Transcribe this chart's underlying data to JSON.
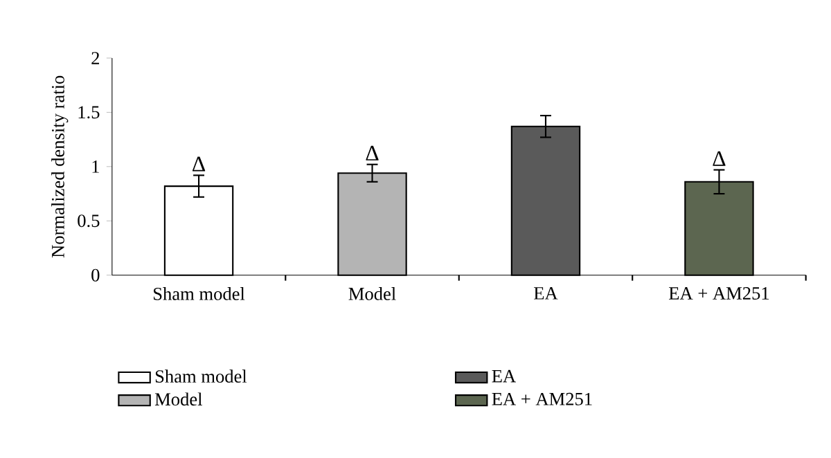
{
  "chart_data": {
    "type": "bar",
    "ylabel": "Normalized density ratio",
    "categories": [
      "Sham model",
      "Model",
      "EA",
      "EA + AM251"
    ],
    "series": [
      {
        "name": "Sham model",
        "color": "#ffffff",
        "values": [
          0.82,
          null,
          null,
          null
        ],
        "errors": [
          0.1,
          null,
          null,
          null
        ]
      },
      {
        "name": "Model",
        "color": "#b4b4b4",
        "values": [
          null,
          0.94,
          null,
          null
        ],
        "errors": [
          null,
          0.08,
          null,
          null
        ]
      },
      {
        "name": "EA",
        "color": "#5a5a5a",
        "values": [
          null,
          null,
          1.37,
          null
        ],
        "errors": [
          null,
          null,
          0.1,
          null
        ]
      },
      {
        "name": "EA + AM251",
        "color": "#5c6650",
        "values": [
          null,
          null,
          null,
          0.86
        ],
        "errors": [
          null,
          null,
          null,
          0.11
        ]
      }
    ],
    "ylim": [
      0,
      2
    ],
    "yticks": [
      0,
      0.5,
      1,
      1.5,
      2
    ],
    "annotations": [
      "Δ",
      "Δ",
      "Δ"
    ],
    "legend": "bottom",
    "grid": false
  }
}
